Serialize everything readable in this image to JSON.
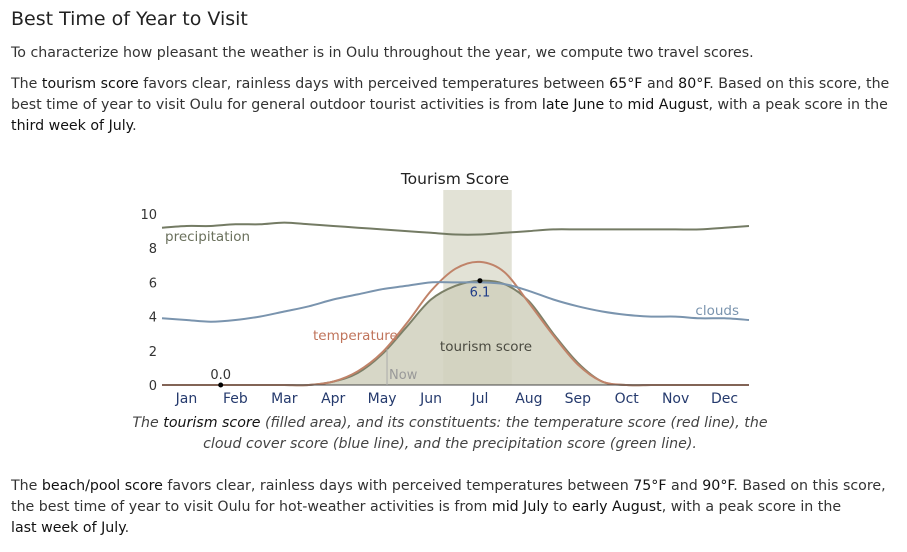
{
  "page": {
    "title": "Best Time of Year to Visit",
    "intro": "To characterize how pleasant the weather is in Oulu throughout the year, we compute two travel scores.",
    "tourism": {
      "a": "The ",
      "b": "tourism score",
      "c": " favors clear, rainless days with perceived temperatures between ",
      "d": "65°F",
      "e": " and ",
      "f": "80°F",
      "g": ". Based on this score, the best time of year to visit Oulu for general outdoor tourist activities is from ",
      "h": "late June",
      "i": " to ",
      "j": "mid August",
      "k": ", with a peak score in the ",
      "l": "third week of July",
      "m": "."
    },
    "beach": {
      "a": "The ",
      "b": "beach/pool score",
      "c": " favors clear, rainless days with perceived temperatures between ",
      "d": "75°F",
      "e": " and ",
      "f": "90°F",
      "g": ". Based on this score, the best time of year to visit Oulu for hot-weather activities is from ",
      "h": "mid July",
      "i": " to ",
      "j": "early August",
      "k": ", with a peak score in the ",
      "l": "last week of July",
      "m": "."
    },
    "caption": {
      "a": "The ",
      "b": "tourism score",
      "c": " (filled area), and its constituents: the temperature score (red line), the cloud cover score (blue line), and the precipitation score (green line)."
    }
  },
  "chart_data": {
    "type": "area",
    "title": "Tourism Score",
    "ylim": [
      0,
      10
    ],
    "y_ticks": [
      "0",
      "2",
      "4",
      "6",
      "8",
      "10"
    ],
    "categories": [
      "Jan",
      "Feb",
      "Mar",
      "Apr",
      "May",
      "Jun",
      "Jul",
      "Aug",
      "Sep",
      "Oct",
      "Nov",
      "Dec"
    ],
    "x": [
      0,
      0.5,
      1,
      1.5,
      2,
      2.5,
      3,
      3.5,
      4,
      4.5,
      5,
      5.5,
      6,
      6.5,
      7,
      7.5,
      8,
      8.5,
      9,
      9.5,
      10,
      10.5,
      11,
      11.5,
      12
    ],
    "series": [
      {
        "name": "precipitation",
        "values": [
          9.2,
          9.3,
          9.3,
          9.4,
          9.4,
          9.5,
          9.4,
          9.3,
          9.2,
          9.1,
          9.0,
          8.9,
          8.8,
          8.8,
          8.9,
          9.0,
          9.1,
          9.1,
          9.1,
          9.1,
          9.1,
          9.1,
          9.1,
          9.2,
          9.3
        ]
      },
      {
        "name": "clouds",
        "values": [
          3.9,
          3.8,
          3.7,
          3.8,
          4.0,
          4.3,
          4.6,
          5.0,
          5.3,
          5.6,
          5.8,
          6.0,
          6.0,
          6.0,
          5.9,
          5.5,
          5.0,
          4.6,
          4.3,
          4.1,
          4.0,
          4.0,
          3.9,
          3.9,
          3.8
        ]
      },
      {
        "name": "temperature",
        "values": [
          0,
          0,
          0,
          0,
          0,
          0,
          0,
          0.2,
          0.8,
          1.9,
          3.6,
          5.5,
          6.8,
          7.2,
          6.6,
          4.8,
          2.9,
          1.2,
          0.2,
          0,
          0,
          0,
          0,
          0,
          0
        ]
      },
      {
        "name": "tourism score",
        "values": [
          0,
          0,
          0,
          0,
          0,
          0,
          0,
          0.2,
          0.7,
          1.8,
          3.4,
          5.0,
          5.8,
          6.1,
          5.9,
          4.9,
          3.0,
          1.3,
          0.2,
          0,
          0,
          0,
          0,
          0,
          0
        ]
      }
    ],
    "best_period": {
      "from": "late June",
      "to": "mid August"
    },
    "annotations": {
      "peak_value": "6.1",
      "peak_x": 6.5,
      "peak_y": 6.1,
      "min_value": "0.0",
      "min_x": 1.2,
      "min_y": 0.0,
      "now_label": "Now",
      "now_x": 4.6
    },
    "colors": {
      "precipitation": "#747b64",
      "clouds": "#7a94ae",
      "temperature": "#c08369",
      "temperature_label": "#c0745b",
      "tourism_fill": "#d0d0bd",
      "tourism_line": "#7c8068",
      "best_band": "#e2e2d6",
      "month_label": "#253a6d",
      "axis": "#444444",
      "peak_label": "#1f3c88"
    }
  }
}
